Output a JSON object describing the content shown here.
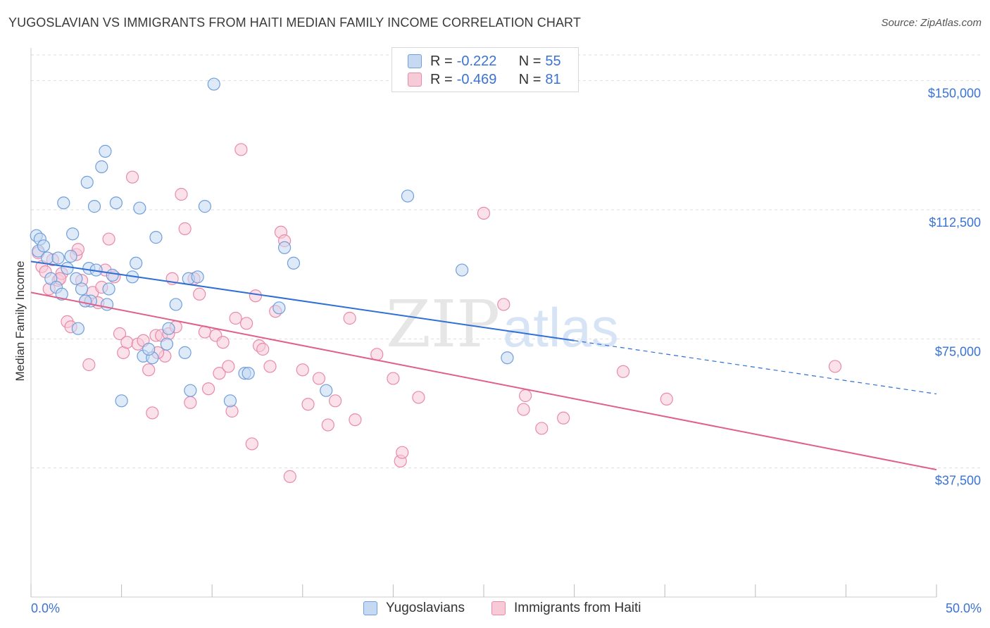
{
  "title": "YUGOSLAVIAN VS IMMIGRANTS FROM HAITI MEDIAN FAMILY INCOME CORRELATION CHART",
  "source": "Source: ZipAtlas.com",
  "watermark": {
    "zip": "ZIP",
    "atlas": "atlas"
  },
  "stats": {
    "r_label": "R =",
    "n_label": "N =",
    "blue": {
      "r": "-0.222",
      "n": "55"
    },
    "pink": {
      "r": "-0.469",
      "n": "81"
    }
  },
  "colors": {
    "blue_fill": "#c5d9f3",
    "blue_stroke": "#6f9fdc",
    "blue_line": "#2f6fd6",
    "pink_fill": "#f7cad8",
    "pink_stroke": "#e98aa8",
    "pink_line": "#e0608a",
    "axis_label": "#3b73d1",
    "grid": "#dddddd"
  },
  "chart_data": {
    "type": "scatter",
    "title": "YUGOSLAVIAN VS IMMIGRANTS FROM HAITI MEDIAN FAMILY INCOME CORRELATION CHART",
    "xlabel": "",
    "ylabel": "Median Family Income",
    "xlim": [
      0,
      50
    ],
    "ylim": [
      0,
      157500
    ],
    "x_tick_labels": [
      "0.0%",
      "50.0%"
    ],
    "y_ticks": [
      37500,
      75000,
      112500,
      150000
    ],
    "y_tick_labels": [
      "$37,500",
      "$75,000",
      "$112,500",
      "$150,000"
    ],
    "grid": true,
    "legend_position": "bottom",
    "series": [
      {
        "name": "Yugoslavians",
        "color": "#6f9fdc",
        "trend": {
          "x": [
            0,
            30
          ],
          "y": [
            97500,
            74500
          ],
          "dashed_to": [
            50,
            59000
          ]
        },
        "points": [
          [
            0.3,
            105000
          ],
          [
            0.4,
            100500
          ],
          [
            0.5,
            104000
          ],
          [
            0.7,
            102000
          ],
          [
            0.9,
            98500
          ],
          [
            1.1,
            92500
          ],
          [
            1.4,
            90000
          ],
          [
            1.5,
            98500
          ],
          [
            1.7,
            88000
          ],
          [
            1.8,
            114500
          ],
          [
            2.0,
            95500
          ],
          [
            2.2,
            99000
          ],
          [
            2.3,
            105500
          ],
          [
            2.5,
            92500
          ],
          [
            2.6,
            78000
          ],
          [
            2.8,
            89500
          ],
          [
            3.1,
            120500
          ],
          [
            3.2,
            95500
          ],
          [
            3.3,
            86000
          ],
          [
            3.5,
            113500
          ],
          [
            3.6,
            95000
          ],
          [
            3.9,
            125000
          ],
          [
            4.1,
            129500
          ],
          [
            4.2,
            85000
          ],
          [
            4.3,
            89500
          ],
          [
            4.5,
            93500
          ],
          [
            4.7,
            114500
          ],
          [
            5.6,
            93000
          ],
          [
            5.8,
            97000
          ],
          [
            6.0,
            113000
          ],
          [
            6.2,
            70000
          ],
          [
            6.7,
            69500
          ],
          [
            6.9,
            104500
          ],
          [
            7.5,
            73500
          ],
          [
            7.6,
            78000
          ],
          [
            8.0,
            85000
          ],
          [
            8.5,
            71000
          ],
          [
            8.7,
            92500
          ],
          [
            9.2,
            93000
          ],
          [
            9.6,
            113500
          ],
          [
            10.1,
            149000
          ],
          [
            11.0,
            57000
          ],
          [
            11.8,
            65000
          ],
          [
            12.0,
            65000
          ],
          [
            13.7,
            84000
          ],
          [
            14.5,
            97000
          ],
          [
            16.3,
            60000
          ],
          [
            20.8,
            116500
          ],
          [
            23.8,
            95000
          ],
          [
            26.3,
            69500
          ],
          [
            3.0,
            86000
          ],
          [
            5.0,
            57000
          ],
          [
            6.5,
            72000
          ],
          [
            8.8,
            60000
          ],
          [
            14.0,
            101500
          ]
        ]
      },
      {
        "name": "Immigrants from Haiti",
        "color": "#e98aa8",
        "trend": {
          "x": [
            0,
            50
          ],
          "y": [
            88500,
            37000
          ]
        },
        "points": [
          [
            0.4,
            100000
          ],
          [
            0.6,
            96000
          ],
          [
            0.8,
            94500
          ],
          [
            1.0,
            89500
          ],
          [
            1.2,
            98000
          ],
          [
            1.5,
            92000
          ],
          [
            1.7,
            94000
          ],
          [
            2.0,
            80000
          ],
          [
            2.2,
            78500
          ],
          [
            2.5,
            99500
          ],
          [
            2.6,
            101000
          ],
          [
            2.8,
            92000
          ],
          [
            3.0,
            86000
          ],
          [
            3.2,
            67500
          ],
          [
            3.4,
            88500
          ],
          [
            3.7,
            85500
          ],
          [
            3.9,
            90000
          ],
          [
            4.1,
            95000
          ],
          [
            4.3,
            104000
          ],
          [
            4.6,
            93000
          ],
          [
            4.9,
            76500
          ],
          [
            5.1,
            71000
          ],
          [
            5.3,
            74000
          ],
          [
            5.6,
            122000
          ],
          [
            5.9,
            73500
          ],
          [
            6.2,
            74500
          ],
          [
            6.5,
            66000
          ],
          [
            6.7,
            53500
          ],
          [
            6.9,
            76000
          ],
          [
            7.2,
            76000
          ],
          [
            7.4,
            70000
          ],
          [
            7.6,
            76500
          ],
          [
            7.8,
            92500
          ],
          [
            8.0,
            78500
          ],
          [
            8.3,
            117000
          ],
          [
            8.5,
            107000
          ],
          [
            8.8,
            56500
          ],
          [
            9.0,
            92500
          ],
          [
            9.3,
            88000
          ],
          [
            9.6,
            77000
          ],
          [
            9.8,
            60500
          ],
          [
            10.2,
            76000
          ],
          [
            10.4,
            65000
          ],
          [
            10.6,
            74000
          ],
          [
            10.9,
            67000
          ],
          [
            11.1,
            54000
          ],
          [
            11.3,
            81000
          ],
          [
            11.6,
            130000
          ],
          [
            11.9,
            79500
          ],
          [
            12.2,
            44500
          ],
          [
            12.4,
            87500
          ],
          [
            12.6,
            73000
          ],
          [
            12.8,
            72000
          ],
          [
            13.2,
            67000
          ],
          [
            13.5,
            83000
          ],
          [
            13.8,
            106000
          ],
          [
            14.0,
            103500
          ],
          [
            14.3,
            35000
          ],
          [
            15.0,
            66000
          ],
          [
            15.3,
            56000
          ],
          [
            15.9,
            63500
          ],
          [
            16.4,
            50000
          ],
          [
            16.8,
            57000
          ],
          [
            17.6,
            81000
          ],
          [
            17.9,
            51500
          ],
          [
            19.1,
            70500
          ],
          [
            20.0,
            63500
          ],
          [
            20.4,
            39500
          ],
          [
            20.5,
            42000
          ],
          [
            21.4,
            58000
          ],
          [
            25.0,
            111500
          ],
          [
            26.1,
            85000
          ],
          [
            27.2,
            54500
          ],
          [
            27.3,
            58500
          ],
          [
            28.2,
            49000
          ],
          [
            29.4,
            52000
          ],
          [
            32.7,
            65500
          ],
          [
            35.1,
            57500
          ],
          [
            44.4,
            67000
          ],
          [
            1.6,
            92500
          ],
          [
            7.0,
            71000
          ]
        ]
      }
    ]
  }
}
